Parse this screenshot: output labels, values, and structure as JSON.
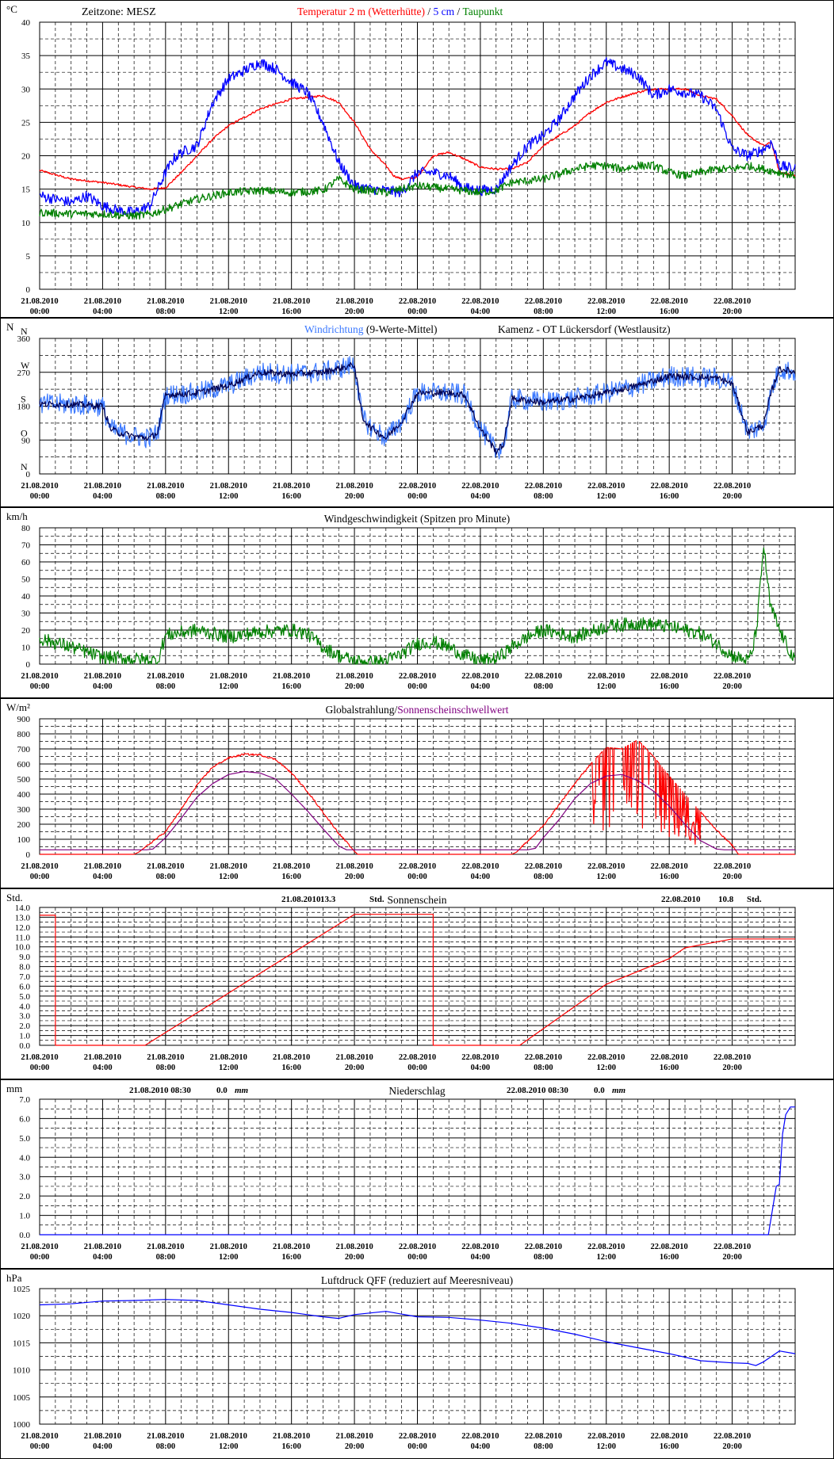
{
  "x_axis": {
    "dates": [
      "21.08.2010",
      "21.08.2010",
      "21.08.2010",
      "21.08.2010",
      "21.08.2010",
      "21.08.2010",
      "22.08.2010",
      "22.08.2010",
      "22.08.2010",
      "22.08.2010",
      "22.08.2010",
      "22.08.2010"
    ],
    "times": [
      "00:00",
      "04:00",
      "08:00",
      "12:00",
      "16:00",
      "20:00",
      "00:00",
      "04:00",
      "08:00",
      "12:00",
      "16:00",
      "20:00"
    ],
    "hours_total": 48
  },
  "colors": {
    "frame": "#000000",
    "red": "#ff0000",
    "blue": "#0000ff",
    "lightblue": "#3a78ff",
    "green": "#008000",
    "purple": "#800080",
    "navy": "#000050"
  },
  "panels": [
    {
      "id": "temperature",
      "unit": "°C",
      "title_parts": [
        {
          "text": "Zeitzone: MESZ",
          "color": "#000000"
        },
        {
          "text": "Temperatur 2 m (Wetterhütte)",
          "color": "#ff0000"
        },
        {
          "text": "/",
          "color": "#000000"
        },
        {
          "text": "5 cm",
          "color": "#0000ff"
        },
        {
          "text": "/",
          "color": "#000000"
        },
        {
          "text": "Taupunkt",
          "color": "#008000"
        }
      ],
      "y_ticks": [
        "0",
        "5",
        "10",
        "15",
        "20",
        "25",
        "30",
        "35",
        "40"
      ]
    },
    {
      "id": "wind-direction",
      "unit": "N",
      "title_parts": [
        {
          "text": "Windrichtung",
          "color": "#3a78ff"
        },
        {
          "text": "(9-Werte-Mittel)",
          "color": "#000000"
        },
        {
          "text": "Kamenz - OT Lückersdorf (Westlausitz)",
          "color": "#000000"
        }
      ],
      "y_ticks": [
        "0",
        "90",
        "180",
        "270",
        "360"
      ],
      "y_letters": [
        "N",
        "O",
        "S",
        "W",
        "N"
      ]
    },
    {
      "id": "wind-speed",
      "unit": "km/h",
      "title_parts": [
        {
          "text": "Windgeschwindigkeit (Spitzen pro Minute)",
          "color": "#000000"
        }
      ],
      "y_ticks": [
        "0",
        "10",
        "20",
        "30",
        "40",
        "50",
        "60",
        "70",
        "80"
      ]
    },
    {
      "id": "radiation",
      "unit": "W/m²",
      "title_parts": [
        {
          "text": "Globalstrahlung/",
          "color": "#000000"
        },
        {
          "text": "Sonnenscheinschwellwert",
          "color": "#800080"
        }
      ],
      "y_ticks": [
        "0",
        "100",
        "200",
        "300",
        "400",
        "500",
        "600",
        "700",
        "800",
        "900"
      ]
    },
    {
      "id": "sunshine",
      "unit": "Std.",
      "title_parts": [
        {
          "text": "Sonnenschein",
          "color": "#000000"
        }
      ],
      "notes": [
        {
          "date": "21.08.2010",
          "value": "13.3",
          "unit": "Std."
        },
        {
          "date": "22.08.2010",
          "value": "10.8",
          "unit": "Std."
        }
      ],
      "y_ticks": [
        "0.0",
        "1.0",
        "2.0",
        "3.0",
        "4.0",
        "5.0",
        "6.0",
        "7.0",
        "8.0",
        "9.0",
        "10.0",
        "11.0",
        "12.0",
        "13.0",
        "14.0"
      ]
    },
    {
      "id": "precipitation",
      "unit": "mm",
      "title_parts": [
        {
          "text": "Niederschlag",
          "color": "#000000"
        }
      ],
      "notes": [
        {
          "date": "21.08.2010 08:30",
          "value": "0.0",
          "unit": "mm"
        },
        {
          "date": "22.08.2010 08:30",
          "value": "0.0",
          "unit": "mm"
        }
      ],
      "y_ticks": [
        "0.0",
        "1.0",
        "2.0",
        "3.0",
        "4.0",
        "5.0",
        "6.0",
        "7.0"
      ]
    },
    {
      "id": "pressure",
      "unit": "hPa",
      "title_parts": [
        {
          "text": "Luftdruck QFF (reduziert auf Meeresniveau)",
          "color": "#000000"
        }
      ],
      "y_ticks": [
        "1000",
        "1005",
        "1010",
        "1015",
        "1020",
        "1025"
      ]
    }
  ],
  "chart_data": [
    {
      "type": "line",
      "x_unit": "hours since 21.08.2010 00:00",
      "xlim": [
        0,
        48
      ],
      "ylim": [
        0,
        40
      ],
      "series": [
        {
          "name": "Temperatur 2 m (Wetterhütte)",
          "color": "#ff0000",
          "noise": 0.15,
          "x": [
            0,
            2,
            4,
            6,
            7,
            8,
            9,
            10,
            11,
            12,
            14,
            16,
            18,
            19,
            20,
            21,
            22,
            22.5,
            23,
            24,
            25,
            26,
            27,
            28,
            29,
            30,
            31,
            32,
            33,
            34,
            35,
            36,
            37,
            38,
            39,
            40,
            41,
            42,
            43,
            44,
            45,
            46,
            46.5,
            47,
            48
          ],
          "y": [
            17.8,
            16.5,
            16,
            15.3,
            15,
            15.2,
            17.5,
            20,
            22.5,
            24.5,
            27,
            28.5,
            29,
            28,
            25,
            21,
            18.5,
            17,
            16.5,
            16.8,
            20,
            20.5,
            19.5,
            18.3,
            18,
            18,
            19,
            21.5,
            23,
            24.5,
            26.5,
            28,
            28.8,
            29.5,
            30,
            30,
            30,
            29,
            28.5,
            26,
            23,
            21.5,
            22,
            17.5,
            17
          ]
        },
        {
          "name": "5 cm",
          "color": "#0000ff",
          "noise": 0.8,
          "x": [
            0,
            1,
            2,
            3,
            4,
            5,
            6,
            7,
            8,
            8.5,
            9,
            10,
            11,
            12,
            14,
            15,
            16,
            17,
            18,
            19,
            20,
            21,
            22,
            23,
            24,
            25,
            26,
            27,
            28,
            29,
            30,
            31,
            32,
            33,
            34,
            35,
            36,
            37,
            38,
            39,
            40,
            41,
            42,
            43,
            44,
            45,
            46,
            46.5,
            47,
            48
          ],
          "y": [
            14,
            13.5,
            13,
            14,
            12.5,
            11.8,
            11.5,
            12.5,
            17.5,
            19.5,
            20.5,
            21.5,
            28,
            31.5,
            34,
            33,
            31,
            29.5,
            25,
            19,
            15.5,
            15,
            14.8,
            14.5,
            17.5,
            17.5,
            17,
            15.2,
            14.8,
            15,
            18.5,
            21.5,
            23,
            25.5,
            29,
            32,
            34,
            33,
            32,
            29,
            30,
            29.5,
            29,
            27,
            21,
            20,
            21,
            22,
            18.5,
            18
          ]
        },
        {
          "name": "Taupunkt",
          "color": "#008000",
          "noise": 0.6,
          "x": [
            0,
            2,
            4,
            6,
            7,
            8,
            10,
            12,
            14,
            16,
            18,
            19,
            20,
            21,
            22,
            24,
            26,
            28,
            29,
            30,
            32,
            34,
            35,
            36,
            37,
            38,
            39,
            40,
            41,
            42,
            43,
            44,
            45,
            46,
            47,
            48
          ],
          "y": [
            11.5,
            11.3,
            11.3,
            11,
            11.2,
            12,
            13.5,
            14.5,
            14.8,
            14.5,
            14.8,
            16.5,
            15,
            14.8,
            14.5,
            15.5,
            15,
            14.5,
            14.8,
            16,
            16.5,
            18,
            18.5,
            18.5,
            18,
            18.5,
            18.5,
            17.5,
            17,
            17.5,
            18,
            18,
            18.5,
            18,
            17.5,
            17
          ]
        }
      ]
    },
    {
      "type": "line",
      "x_unit": "hours since 21.08.2010 00:00",
      "xlim": [
        0,
        48
      ],
      "ylim": [
        0,
        360
      ],
      "series": [
        {
          "name": "Windrichtung",
          "color": "#3a78ff",
          "noise": 28,
          "x": [
            0,
            2,
            4,
            4.5,
            5,
            6,
            7,
            7.5,
            8,
            10,
            12,
            14,
            16,
            18,
            20,
            20.5,
            21,
            22,
            23,
            24,
            26,
            27,
            28,
            29,
            29.5,
            30,
            32,
            34,
            36,
            38,
            40,
            43,
            44,
            45,
            46,
            46.5,
            47,
            48
          ],
          "y": [
            185,
            185,
            180,
            120,
            110,
            100,
            95,
            110,
            210,
            215,
            235,
            270,
            265,
            270,
            290,
            150,
            125,
            95,
            140,
            215,
            215,
            210,
            120,
            60,
            80,
            200,
            190,
            200,
            215,
            235,
            260,
            255,
            240,
            110,
            130,
            220,
            280,
            270
          ]
        },
        {
          "name": "9-Werte-Mittel",
          "color": "#000050",
          "noise": 9,
          "x": [
            0,
            2,
            4,
            4.5,
            5,
            6,
            7,
            7.5,
            8,
            10,
            12,
            14,
            16,
            18,
            20,
            20.5,
            21,
            22,
            23,
            24,
            26,
            27,
            28,
            29,
            29.5,
            30,
            32,
            34,
            36,
            38,
            40,
            43,
            44,
            45,
            46,
            46.5,
            47,
            48
          ],
          "y": [
            185,
            185,
            180,
            120,
            110,
            100,
            95,
            110,
            210,
            215,
            235,
            270,
            265,
            270,
            290,
            150,
            125,
            95,
            140,
            215,
            215,
            210,
            120,
            60,
            80,
            200,
            190,
            200,
            215,
            235,
            260,
            255,
            240,
            110,
            130,
            220,
            280,
            270
          ]
        }
      ]
    },
    {
      "type": "line",
      "x_unit": "hours since 21.08.2010 00:00",
      "xlim": [
        0,
        48
      ],
      "ylim": [
        0,
        80
      ],
      "series": [
        {
          "name": "Windgeschwindigkeit (Spitzen pro Minute)",
          "color": "#008000",
          "noise": 4,
          "x": [
            0,
            2,
            4,
            6,
            7.5,
            8,
            10,
            12,
            14,
            16,
            17,
            18,
            19,
            20,
            21,
            22,
            23,
            24,
            25,
            26,
            27,
            28,
            29,
            30,
            31,
            32,
            34,
            36,
            38,
            40,
            42,
            43,
            44,
            45,
            45.3,
            45.6,
            46,
            46.4,
            47,
            48
          ],
          "y": [
            15,
            10,
            4,
            3,
            2,
            17,
            20,
            16,
            19,
            20,
            18,
            10,
            5,
            2,
            1,
            2,
            6,
            12,
            13,
            10,
            5,
            2,
            3,
            10,
            16,
            20,
            16,
            22,
            24,
            22,
            18,
            12,
            5,
            2,
            8,
            25,
            70,
            35,
            20,
            1
          ]
        }
      ]
    },
    {
      "type": "line",
      "x_unit": "hours since 21.08.2010 00:00",
      "xlim": [
        0,
        48
      ],
      "ylim": [
        0,
        900
      ],
      "series": [
        {
          "name": "Globalstrahlung",
          "color": "#ff0000",
          "x": [
            0,
            6,
            6.3,
            8,
            9,
            10,
            11,
            12,
            13,
            14,
            15,
            16,
            17,
            18,
            19,
            20,
            20.2,
            30,
            30.3,
            32,
            33,
            34,
            35,
            36,
            37,
            38,
            39,
            40,
            41,
            42,
            43,
            44,
            44.4,
            48
          ],
          "y": [
            0,
            0,
            15,
            150,
            300,
            460,
            580,
            640,
            665,
            660,
            630,
            540,
            420,
            280,
            140,
            20,
            0,
            0,
            15,
            190,
            330,
            470,
            600,
            710,
            700,
            760,
            650,
            520,
            400,
            280,
            160,
            60,
            0,
            0
          ]
        },
        {
          "name": "Sonnenscheinschwellwert",
          "color": "#800080",
          "x": [
            0,
            6.8,
            7.2,
            8,
            9,
            10,
            11,
            12,
            13,
            14,
            15,
            16,
            17,
            18,
            19,
            19.5,
            20,
            31,
            31.5,
            32,
            33,
            34,
            35,
            36,
            37,
            38,
            39,
            40,
            41,
            42,
            43,
            43.5,
            44,
            48
          ],
          "y": [
            30,
            30,
            35,
            110,
            240,
            380,
            470,
            530,
            550,
            540,
            500,
            400,
            290,
            170,
            55,
            30,
            30,
            30,
            40,
            110,
            230,
            370,
            470,
            520,
            530,
            490,
            420,
            320,
            200,
            90,
            35,
            30,
            30,
            30
          ]
        }
      ]
    },
    {
      "type": "line",
      "x_unit": "hours since 21.08.2010 00:00",
      "xlim": [
        0,
        48
      ],
      "ylim": [
        0,
        14
      ],
      "series": [
        {
          "name": "Sonnenschein",
          "color": "#ff0000",
          "x": [
            0,
            1,
            1,
            6.7,
            20,
            25,
            25,
            30.5,
            36,
            38,
            40,
            41,
            44,
            48
          ],
          "y": [
            13.2,
            13.2,
            0,
            0,
            13.3,
            13.3,
            0,
            0,
            6.2,
            7.5,
            8.8,
            9.9,
            10.8,
            10.8
          ]
        }
      ]
    },
    {
      "type": "line",
      "x_unit": "hours since 21.08.2010 00:00",
      "xlim": [
        0,
        48
      ],
      "ylim": [
        0,
        7
      ],
      "series": [
        {
          "name": "Niederschlag",
          "color": "#0000ff",
          "x": [
            0,
            46.3,
            46.8,
            47,
            47.2,
            47.4,
            47.7,
            48
          ],
          "y": [
            0,
            0,
            2.5,
            2.6,
            5.2,
            6.2,
            6.6,
            6.6
          ]
        }
      ]
    },
    {
      "type": "line",
      "x_unit": "hours since 21.08.2010 00:00",
      "xlim": [
        0,
        48
      ],
      "ylim": [
        1000,
        1025
      ],
      "series": [
        {
          "name": "Luftdruck QFF (reduziert auf Meeresniveau)",
          "color": "#0000ff",
          "x": [
            0,
            2,
            4,
            6,
            8,
            10,
            12,
            14,
            16,
            18,
            19,
            20,
            22,
            24,
            26,
            28,
            30,
            32,
            34,
            36,
            38,
            40,
            42,
            44,
            45,
            45.5,
            46,
            47,
            48
          ],
          "y": [
            1022,
            1022.2,
            1022.7,
            1022.8,
            1023,
            1022.8,
            1022,
            1021.2,
            1020.6,
            1019.8,
            1019.5,
            1020.2,
            1020.8,
            1019.8,
            1019.7,
            1019.2,
            1018.6,
            1017.7,
            1016.6,
            1015.2,
            1014.1,
            1013,
            1011.7,
            1011.3,
            1011.2,
            1010.8,
            1011.5,
            1013.5,
            1013
          ]
        }
      ]
    }
  ]
}
